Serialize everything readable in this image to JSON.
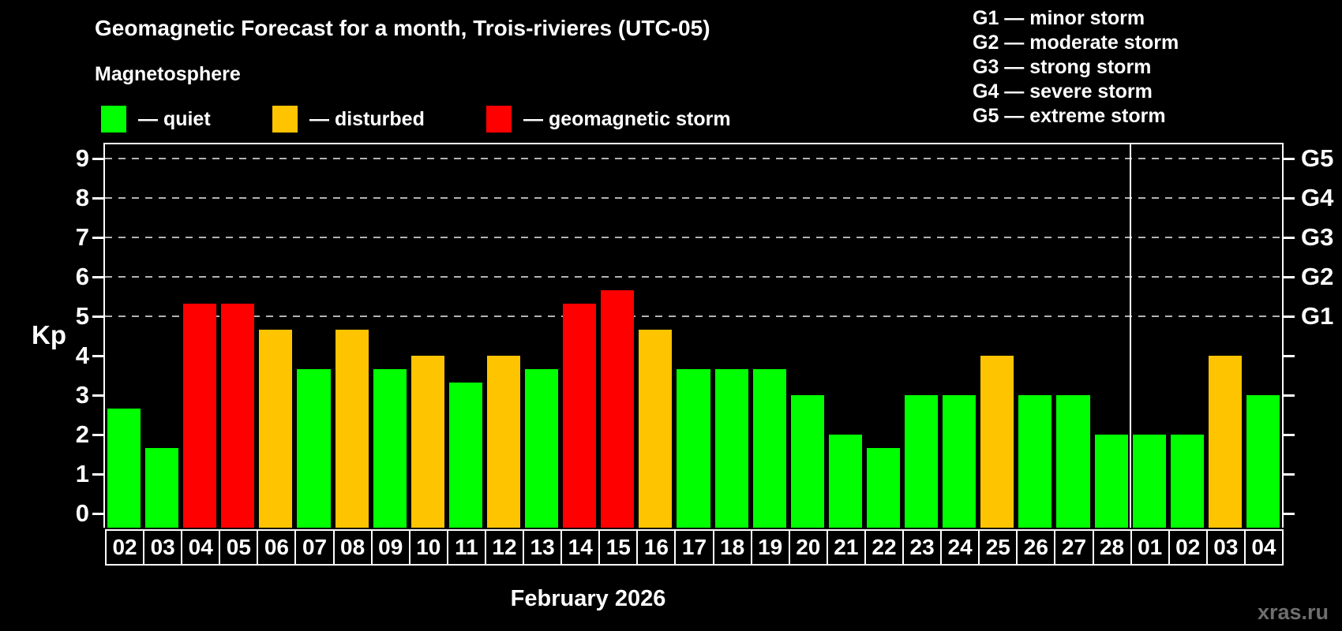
{
  "title": "Geomagnetic Forecast for a month, Trois-rivieres (UTC-05)",
  "legend": {
    "title": "Magnetosphere",
    "items": [
      {
        "label": "— quiet",
        "status": "quiet"
      },
      {
        "label": "— disturbed",
        "status": "disturbed"
      },
      {
        "label": "— geomagnetic storm",
        "status": "storm"
      }
    ]
  },
  "colors": {
    "quiet": "#00ff00",
    "disturbed": "#ffc400",
    "storm": "#ff0000",
    "background": "#000000",
    "axis": "#ffffff",
    "gridline": "#b3b3b3",
    "watermark": "#6e6e6e"
  },
  "g_scale_legend": {
    "lines": [
      "G1 — minor storm",
      "G2 — moderate storm",
      "G3 — strong storm",
      "G4 — severe storm",
      "G5 — extreme storm"
    ]
  },
  "y_axis": {
    "label": "Kp",
    "ticks": [
      "0",
      "1",
      "2",
      "3",
      "4",
      "5",
      "6",
      "7",
      "8",
      "9"
    ]
  },
  "right_axis": {
    "labels": [
      {
        "text": "G5",
        "kp": 9
      },
      {
        "text": "G4",
        "kp": 8
      },
      {
        "text": "G3",
        "kp": 7
      },
      {
        "text": "G2",
        "kp": 6
      },
      {
        "text": "G1",
        "kp": 5
      }
    ]
  },
  "x_axis": {
    "caption": "February 2026"
  },
  "watermark": "xras.ru",
  "chart_data": {
    "type": "bar",
    "title": "Geomagnetic Forecast for a month, Trois-rivieres (UTC-05)",
    "xlabel": "February 2026",
    "ylabel": "Kp",
    "ylim": [
      0,
      9.4
    ],
    "grid": "horizontal dashed lines at Kp 5,6,7,8,9 mapped to G1..G5",
    "legend_position": "top",
    "categories": [
      "02",
      "03",
      "04",
      "05",
      "06",
      "07",
      "08",
      "09",
      "10",
      "11",
      "12",
      "13",
      "14",
      "15",
      "16",
      "17",
      "18",
      "19",
      "20",
      "21",
      "22",
      "23",
      "24",
      "25",
      "26",
      "27",
      "28",
      "01",
      "02",
      "03",
      "04"
    ],
    "values": [
      2.67,
      1.67,
      5.33,
      5.33,
      4.67,
      3.67,
      4.67,
      3.67,
      4,
      3.33,
      4,
      3.67,
      5.33,
      5.67,
      4.67,
      3.67,
      3.67,
      3.67,
      3,
      2,
      1.67,
      3,
      3,
      4,
      3,
      3,
      2,
      2,
      2,
      4,
      3
    ],
    "statuses": [
      "quiet",
      "quiet",
      "storm",
      "storm",
      "disturbed",
      "quiet",
      "disturbed",
      "quiet",
      "disturbed",
      "quiet",
      "disturbed",
      "quiet",
      "storm",
      "storm",
      "disturbed",
      "quiet",
      "quiet",
      "quiet",
      "quiet",
      "quiet",
      "quiet",
      "quiet",
      "quiet",
      "disturbed",
      "quiet",
      "quiet",
      "quiet",
      "quiet",
      "quiet",
      "disturbed",
      "quiet"
    ],
    "month_separator_index": 27
  }
}
